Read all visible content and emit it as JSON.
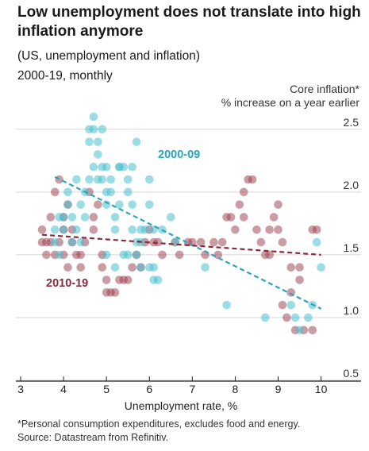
{
  "title": "Low unemployment does not translate into high inflation anymore",
  "subtitle": "(US, unemployment and inflation)",
  "period": "2000-19, monthly",
  "footnote": "*Personal consumption expenditures, excludes food and energy.",
  "source": "Source: Datastream from Refinitiv.",
  "colors": {
    "series_2000_09": "#4bbfcf",
    "series_2010_19": "#9a3a4c",
    "grid": "#d6d6d6"
  },
  "chart_data": {
    "type": "scatter",
    "xlabel": "Unemployment rate, %",
    "ylabel_line1": "Core inflation*",
    "ylabel_line2": "% increase on a year earlier",
    "xlim": [
      3,
      10.1
    ],
    "ylim": [
      0.5,
      2.6
    ],
    "x_ticks": [
      "3",
      "4",
      "5",
      "6",
      "7",
      "8",
      "9",
      "10"
    ],
    "x_tick_values": [
      3,
      4,
      5,
      6,
      7,
      8,
      9,
      10
    ],
    "y_ticks": [
      "0.5",
      "1.0",
      "1.5",
      "2.0",
      "2.5"
    ],
    "y_tick_values": [
      0.5,
      1.0,
      1.5,
      2.0,
      2.5
    ],
    "grid": "horizontal",
    "series": [
      {
        "name": "2000-09",
        "points": [
          [
            3.8,
            1.6
          ],
          [
            3.8,
            1.7
          ],
          [
            3.9,
            1.8
          ],
          [
            3.9,
            1.5
          ],
          [
            4.0,
            1.7
          ],
          [
            4.0,
            1.8
          ],
          [
            4.1,
            1.9
          ],
          [
            4.1,
            2.0
          ],
          [
            4.2,
            1.8
          ],
          [
            4.2,
            1.6
          ],
          [
            4.3,
            2.1
          ],
          [
            4.3,
            1.7
          ],
          [
            4.4,
            1.9
          ],
          [
            4.4,
            1.6
          ],
          [
            4.5,
            1.8
          ],
          [
            4.5,
            2.0
          ],
          [
            4.6,
            2.1
          ],
          [
            4.6,
            2.5
          ],
          [
            4.6,
            2.4
          ],
          [
            4.7,
            2.6
          ],
          [
            4.7,
            2.5
          ],
          [
            4.7,
            2.2
          ],
          [
            4.8,
            2.4
          ],
          [
            4.8,
            2.3
          ],
          [
            4.8,
            2.1
          ],
          [
            4.9,
            2.1
          ],
          [
            4.9,
            2.2
          ],
          [
            5.0,
            2.2
          ],
          [
            5.0,
            2.0
          ],
          [
            5.0,
            1.9
          ],
          [
            5.1,
            2.1
          ],
          [
            5.1,
            2.0
          ],
          [
            5.2,
            1.8
          ],
          [
            5.2,
            1.7
          ],
          [
            5.3,
            2.2
          ],
          [
            5.3,
            1.9
          ],
          [
            5.4,
            1.5
          ],
          [
            5.4,
            2.2
          ],
          [
            5.5,
            2.1
          ],
          [
            5.5,
            2.0
          ],
          [
            5.5,
            1.5
          ],
          [
            5.6,
            1.9
          ],
          [
            5.6,
            1.7
          ],
          [
            5.7,
            1.6
          ],
          [
            5.7,
            1.5
          ],
          [
            5.7,
            2.4
          ],
          [
            5.8,
            1.7
          ],
          [
            5.8,
            1.6
          ],
          [
            5.9,
            1.7
          ],
          [
            6.0,
            2.1
          ],
          [
            6.0,
            1.9
          ],
          [
            6.0,
            1.4
          ],
          [
            6.1,
            1.7
          ],
          [
            6.1,
            1.4
          ],
          [
            6.2,
            1.3
          ],
          [
            6.3,
            1.7
          ],
          [
            6.5,
            1.8
          ],
          [
            6.6,
            1.6
          ],
          [
            7.3,
            1.4
          ],
          [
            7.8,
            1.1
          ],
          [
            8.7,
            1.0
          ],
          [
            9.3,
            1.1
          ],
          [
            9.4,
            1.0
          ],
          [
            9.5,
            0.9
          ],
          [
            9.7,
            1.0
          ],
          [
            9.8,
            1.1
          ],
          [
            9.9,
            1.6
          ],
          [
            10.0,
            1.4
          ],
          [
            5.0,
            1.5
          ],
          [
            4.9,
            2.5
          ],
          [
            5.6,
            2.2
          ],
          [
            5.3,
            2.2
          ],
          [
            5.2,
            1.4
          ],
          [
            5.8,
            1.4
          ],
          [
            6.1,
            1.3
          ]
        ]
      },
      {
        "name": "2010-19",
        "points": [
          [
            3.5,
            1.6
          ],
          [
            3.5,
            1.7
          ],
          [
            3.6,
            1.6
          ],
          [
            3.6,
            1.5
          ],
          [
            3.7,
            1.6
          ],
          [
            3.7,
            1.8
          ],
          [
            3.8,
            1.5
          ],
          [
            3.8,
            2.0
          ],
          [
            3.9,
            1.6
          ],
          [
            3.9,
            2.1
          ],
          [
            4.0,
            1.7
          ],
          [
            4.0,
            1.8
          ],
          [
            4.0,
            1.5
          ],
          [
            4.1,
            1.9
          ],
          [
            4.1,
            1.4
          ],
          [
            4.2,
            1.6
          ],
          [
            4.2,
            1.7
          ],
          [
            4.3,
            1.5
          ],
          [
            4.4,
            1.5
          ],
          [
            4.4,
            1.4
          ],
          [
            4.5,
            1.6
          ],
          [
            4.6,
            2.0
          ],
          [
            4.7,
            1.7
          ],
          [
            4.7,
            1.8
          ],
          [
            4.8,
            1.9
          ],
          [
            4.9,
            1.5
          ],
          [
            4.9,
            1.4
          ],
          [
            5.0,
            1.2
          ],
          [
            5.0,
            1.3
          ],
          [
            5.1,
            1.2
          ],
          [
            5.2,
            1.2
          ],
          [
            5.3,
            1.3
          ],
          [
            5.4,
            1.3
          ],
          [
            5.5,
            1.3
          ],
          [
            5.6,
            1.4
          ],
          [
            5.7,
            1.5
          ],
          [
            5.8,
            1.4
          ],
          [
            5.9,
            1.6
          ],
          [
            6.0,
            1.7
          ],
          [
            6.1,
            1.6
          ],
          [
            6.2,
            1.6
          ],
          [
            6.3,
            1.5
          ],
          [
            6.6,
            1.6
          ],
          [
            6.7,
            1.5
          ],
          [
            6.9,
            1.6
          ],
          [
            7.0,
            1.6
          ],
          [
            7.2,
            1.6
          ],
          [
            7.3,
            1.5
          ],
          [
            7.5,
            1.6
          ],
          [
            7.6,
            1.5
          ],
          [
            7.7,
            1.6
          ],
          [
            7.8,
            1.8
          ],
          [
            7.9,
            1.8
          ],
          [
            8.0,
            1.7
          ],
          [
            8.1,
            1.9
          ],
          [
            8.2,
            2.0
          ],
          [
            8.2,
            1.8
          ],
          [
            8.3,
            2.1
          ],
          [
            8.4,
            2.1
          ],
          [
            8.5,
            1.7
          ],
          [
            8.6,
            1.6
          ],
          [
            8.7,
            1.5
          ],
          [
            8.8,
            1.5
          ],
          [
            8.8,
            1.7
          ],
          [
            8.9,
            1.8
          ],
          [
            9.0,
            1.9
          ],
          [
            9.0,
            1.7
          ],
          [
            9.1,
            1.6
          ],
          [
            9.1,
            1.1
          ],
          [
            9.2,
            1.0
          ],
          [
            9.3,
            1.2
          ],
          [
            9.3,
            1.4
          ],
          [
            9.4,
            0.9
          ],
          [
            9.5,
            1.3
          ],
          [
            9.6,
            0.9
          ],
          [
            9.8,
            0.9
          ],
          [
            9.9,
            1.7
          ],
          [
            9.8,
            1.7
          ],
          [
            9.5,
            1.4
          ]
        ]
      }
    ],
    "trendlines": [
      {
        "series": "2000-09",
        "from": [
          3.8,
          2.12
        ],
        "to": [
          10.0,
          1.07
        ],
        "label": "2000-09"
      },
      {
        "series": "2010-19",
        "from": [
          3.5,
          1.66
        ],
        "to": [
          10.0,
          1.5
        ],
        "label": "2010-19"
      }
    ]
  }
}
